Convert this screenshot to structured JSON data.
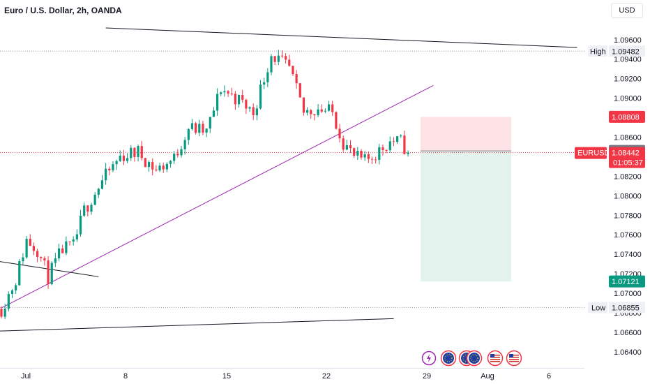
{
  "header": {
    "symbol_title": "Euro / U.S. Dollar, 2h, OANDA",
    "currency_button": "USD"
  },
  "price_axis": {
    "ticks": [
      "1.09600",
      "1.09400",
      "1.09200",
      "1.09000",
      "1.08600",
      "1.08200",
      "1.08000",
      "1.07800",
      "1.07600",
      "1.07400",
      "1.07200",
      "1.07000",
      "1.06800",
      "1.06600",
      "1.06400"
    ]
  },
  "time_axis": {
    "labels": [
      "Jul",
      "8",
      "15",
      "22",
      "29",
      "Aug",
      "6"
    ]
  },
  "labels": {
    "high_text": "High",
    "high_value": "1.09482",
    "low_text": "Low",
    "low_value": "1.06855",
    "stop_value": "1.08808",
    "entry_value": "1.08460",
    "symbol_tag": "EURUSD",
    "current_price": "1.08442",
    "countdown": "01:05:37",
    "target_value": "1.07121"
  },
  "colors": {
    "up": "#089981",
    "down": "#f23645",
    "trendline": "#9c27b0",
    "line": "#131722",
    "stop_zone": "#fde3e5",
    "target_zone": "#e3f2ec",
    "target_label": "#089981",
    "stop_label": "#f23645",
    "entry_label": "#787b86"
  },
  "events": [
    "lightning-icon",
    "eu-flag-icon",
    "eu-flag-icon",
    "eu-flag-icon",
    "us-flag-icon",
    "us-flag-icon"
  ],
  "chart_data": {
    "type": "candlestick",
    "title": "Euro / U.S. Dollar, 2h, OANDA",
    "ylim": [
      1.0636,
      1.0972
    ],
    "price_high": 1.09482,
    "price_low": 1.06855,
    "last_price": 1.08442,
    "position": {
      "type": "short",
      "entry": 1.0846,
      "stop": 1.08808,
      "target": 1.07121
    },
    "path_series": [
      {
        "x": 0,
        "y": 1.0684
      },
      {
        "x": 4,
        "y": 1.0714
      },
      {
        "x": 7,
        "y": 1.0755
      },
      {
        "x": 10,
        "y": 1.0745
      },
      {
        "x": 13,
        "y": 1.0717
      },
      {
        "x": 17,
        "y": 1.0745
      },
      {
        "x": 20,
        "y": 1.0748
      },
      {
        "x": 23,
        "y": 1.0785
      },
      {
        "x": 28,
        "y": 1.0815
      },
      {
        "x": 33,
        "y": 1.084
      },
      {
        "x": 38,
        "y": 1.0845
      },
      {
        "x": 43,
        "y": 1.0826
      },
      {
        "x": 48,
        "y": 1.0838
      },
      {
        "x": 52,
        "y": 1.087
      },
      {
        "x": 57,
        "y": 1.0865
      },
      {
        "x": 61,
        "y": 1.091
      },
      {
        "x": 66,
        "y": 1.0898
      },
      {
        "x": 70,
        "y": 1.0885
      },
      {
        "x": 75,
        "y": 1.0945
      },
      {
        "x": 80,
        "y": 1.093
      },
      {
        "x": 84,
        "y": 1.0885
      },
      {
        "x": 88,
        "y": 1.089
      },
      {
        "x": 92,
        "y": 1.0885
      },
      {
        "x": 95,
        "y": 1.0855
      },
      {
        "x": 98,
        "y": 1.084
      },
      {
        "x": 101,
        "y": 1.0835
      },
      {
        "x": 105,
        "y": 1.0846
      },
      {
        "x": 108,
        "y": 1.0856
      },
      {
        "x": 111,
        "y": 1.0855
      },
      {
        "x": 113,
        "y": 1.0844
      }
    ],
    "trendlines": [
      {
        "from": [
          0,
          1.0685
        ],
        "to": [
          120,
          1.0913
        ],
        "color": "#9c27b0"
      },
      {
        "from": [
          -3,
          1.0734
        ],
        "to": [
          27,
          1.0717
        ],
        "color": "#131722"
      },
      {
        "from": [
          -3,
          1.0661
        ],
        "to": [
          109,
          1.0674
        ],
        "color": "#131722"
      },
      {
        "from": [
          29,
          1.0972
        ],
        "to": [
          160,
          1.0952
        ],
        "color": "#131722"
      }
    ]
  }
}
